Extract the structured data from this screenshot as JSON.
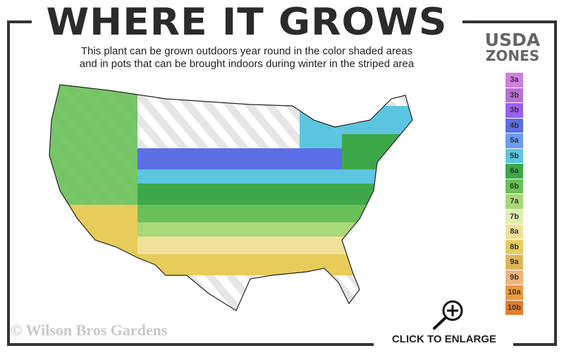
{
  "header": {
    "title": "WHERE IT GROWS",
    "subtitle_line1": "This plant can be grown outdoors year round in the color shaded areas",
    "subtitle_line2": "and in pots that can be brought indoors during winter in the striped area"
  },
  "legend": {
    "title_line1": "USDA",
    "title_line2": "ZONES",
    "zones": [
      {
        "label": "3a",
        "color": "#d07fe0"
      },
      {
        "label": "3b",
        "color": "#b86fd6"
      },
      {
        "label": "3b",
        "color": "#9b5ef0"
      },
      {
        "label": "4b",
        "color": "#5a6fe6"
      },
      {
        "label": "5a",
        "color": "#6b9cf2"
      },
      {
        "label": "5b",
        "color": "#5cc6e0"
      },
      {
        "label": "6a",
        "color": "#3da84a"
      },
      {
        "label": "6b",
        "color": "#68c057"
      },
      {
        "label": "7a",
        "color": "#a8d878"
      },
      {
        "label": "7b",
        "color": "#dfeeb0"
      },
      {
        "label": "8a",
        "color": "#f0e19a"
      },
      {
        "label": "8b",
        "color": "#e8cc5a"
      },
      {
        "label": "9a",
        "color": "#dcb75a"
      },
      {
        "label": "9b",
        "color": "#f2b37a"
      },
      {
        "label": "10a",
        "color": "#eb9a3c"
      },
      {
        "label": "10b",
        "color": "#e07f2e"
      }
    ]
  },
  "watermark": "© Wilson Bros Gardens",
  "enlarge": {
    "label": "CLICK TO ENLARGE",
    "icon": "zoom-in-magnifier-icon"
  },
  "frame_color": "#333333"
}
